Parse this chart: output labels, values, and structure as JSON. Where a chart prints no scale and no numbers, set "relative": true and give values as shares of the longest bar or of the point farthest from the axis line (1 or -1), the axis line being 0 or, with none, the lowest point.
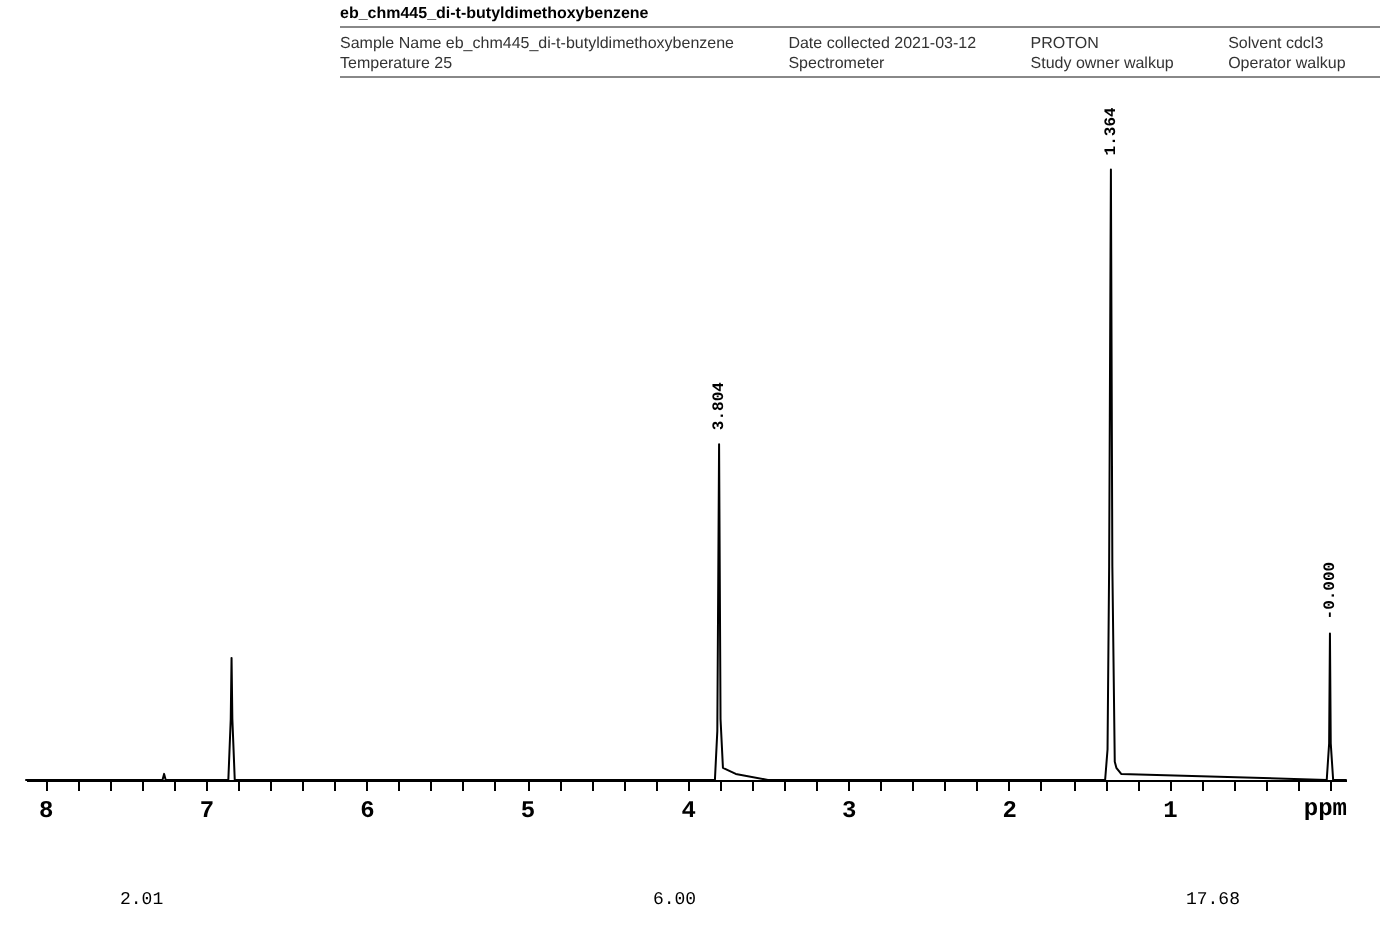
{
  "chart_data": {
    "type": "line",
    "title": "eb_chm445_di-t-butyldimethoxybenzene",
    "annotations": [
      "Sample Name eb_chm445_di-t-butyldimethoxybenzene",
      "Date collected 2021-03-12",
      "PROTON",
      "Solvent cdcl3",
      "Temperature 25",
      "Spectrometer",
      "Study owner walkup",
      "Operator walkup",
      "2.01",
      "6.00",
      "17.68",
      {
        "text": "3.804",
        "x": 3.804,
        "y": 0.55
      },
      {
        "text": "1.364",
        "x": 1.364,
        "y": 1.0
      },
      {
        "text": "-0.000",
        "x": 0.0,
        "y": 0.24
      }
    ],
    "xlabel": "ppm",
    "relative": true,
    "xlim": [
      8.12,
      -0.1
    ],
    "xticks": [
      8,
      {
        "value": 7.8,
        "label": null
      },
      {
        "value": 7.6,
        "label": null
      },
      {
        "value": 7.4,
        "label": null
      },
      {
        "value": 7.2,
        "label": null
      },
      7,
      {
        "value": 6.8,
        "label": null
      },
      {
        "value": 6.6,
        "label": null
      },
      {
        "value": 6.4,
        "label": null
      },
      {
        "value": 6.2,
        "label": null
      },
      6,
      {
        "value": 5.8,
        "label": null
      },
      {
        "value": 5.6,
        "label": null
      },
      {
        "value": 5.4,
        "label": null
      },
      {
        "value": 5.2,
        "label": null
      },
      5,
      {
        "value": 4.8,
        "label": null
      },
      {
        "value": 4.6,
        "label": null
      },
      {
        "value": 4.4,
        "label": null
      },
      {
        "value": 4.2,
        "label": null
      },
      4,
      {
        "value": 3.8,
        "label": null
      },
      {
        "value": 3.6,
        "label": null
      },
      {
        "value": 3.4,
        "label": null
      },
      {
        "value": 3.2,
        "label": null
      },
      3,
      {
        "value": 2.8,
        "label": null
      },
      {
        "value": 2.6,
        "label": null
      },
      {
        "value": 2.4,
        "label": null
      },
      {
        "value": 2.2,
        "label": null
      },
      2,
      {
        "value": 1.8,
        "label": null
      },
      {
        "value": 1.6,
        "label": null
      },
      {
        "value": 1.4,
        "label": null
      },
      {
        "value": 1.2,
        "label": null
      },
      1,
      {
        "value": 0.8,
        "label": null
      },
      {
        "value": 0.6,
        "label": null
      },
      {
        "value": 0.4,
        "label": null
      },
      {
        "value": 0.2,
        "label": null
      },
      {
        "value": 0,
        "label": null
      }
    ],
    "series": [
      {
        "color": "#000000",
        "x": [
          8.12,
          7.27,
          7.26,
          7.25,
          6.86,
          6.845,
          6.84,
          6.835,
          6.82,
          3.83,
          3.815,
          3.804,
          3.795,
          3.78,
          3.7,
          3.5,
          1.4,
          1.385,
          1.375,
          1.364,
          1.355,
          1.34,
          1.33,
          1.3,
          0.02,
          0.005,
          0.0,
          -0.005,
          -0.02,
          -0.1
        ],
        "values": [
          0,
          0,
          0.01,
          0,
          0,
          0.1,
          0.2,
          0.1,
          0,
          0,
          0.08,
          0.55,
          0.1,
          0.02,
          0.01,
          0,
          0,
          0.05,
          0.35,
          1.0,
          0.35,
          0.03,
          0.02,
          0.01,
          0,
          0.06,
          0.24,
          0.06,
          0,
          0
        ]
      }
    ]
  }
}
